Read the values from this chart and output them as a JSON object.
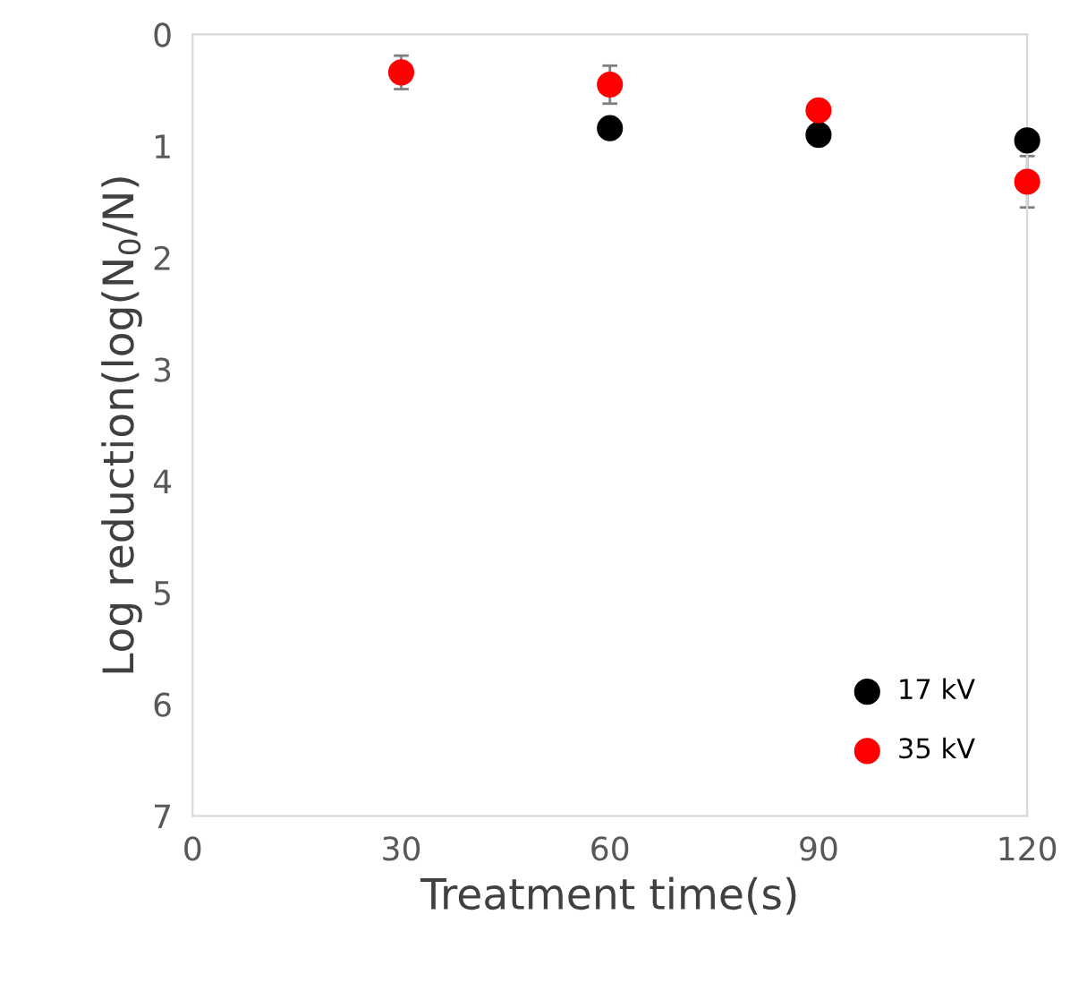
{
  "chart_data": {
    "type": "scatter",
    "xlabel": "Treatment time(s)",
    "ylabel": "Log reduction(log(N$_{0}$/N)",
    "xlim": [
      0,
      120
    ],
    "xticks": [
      0,
      30,
      60,
      90,
      120
    ],
    "ylim": [
      7,
      0
    ],
    "yticks": [
      0,
      1,
      2,
      3,
      4,
      5,
      6,
      7
    ],
    "grid": false,
    "legend": "bottom right",
    "marker": "circle",
    "series": [
      {
        "name": "17 kV",
        "color": "#000000",
        "x": [
          60,
          90,
          120
        ],
        "values": [
          0.84,
          0.9,
          0.95
        ]
      },
      {
        "name": "35 kV",
        "color": "#ff0000",
        "x": [
          30,
          60,
          90,
          120
        ],
        "values": [
          0.34,
          0.45,
          0.68,
          1.32
        ],
        "errors": [
          0.15,
          0.17,
          null,
          0.23
        ]
      }
    ]
  }
}
